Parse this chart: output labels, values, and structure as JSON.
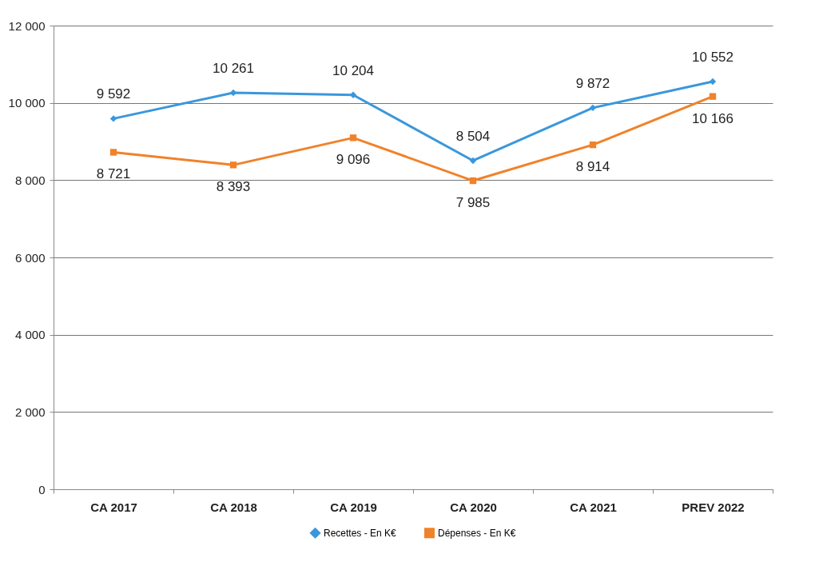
{
  "chart_data": {
    "type": "line",
    "categories": [
      "CA 2017",
      "CA 2018",
      "CA 2019",
      "CA 2020",
      "CA 2021",
      "PREV 2022"
    ],
    "series": [
      {
        "name": "Recettes - En K€",
        "color": "#3a97dc",
        "marker": "diamond",
        "values": [
          9592,
          10261,
          10204,
          8504,
          9872,
          10552
        ]
      },
      {
        "name": "Dépenses - En K€",
        "color": "#f0822a",
        "marker": "square",
        "values": [
          8721,
          8393,
          9096,
          7985,
          8914,
          10166
        ]
      }
    ],
    "ylim": [
      0,
      12000
    ],
    "yticks": [
      0,
      2000,
      4000,
      6000,
      8000,
      10000,
      12000
    ],
    "grid": "y",
    "legend": "bottom",
    "data_labels": true
  }
}
